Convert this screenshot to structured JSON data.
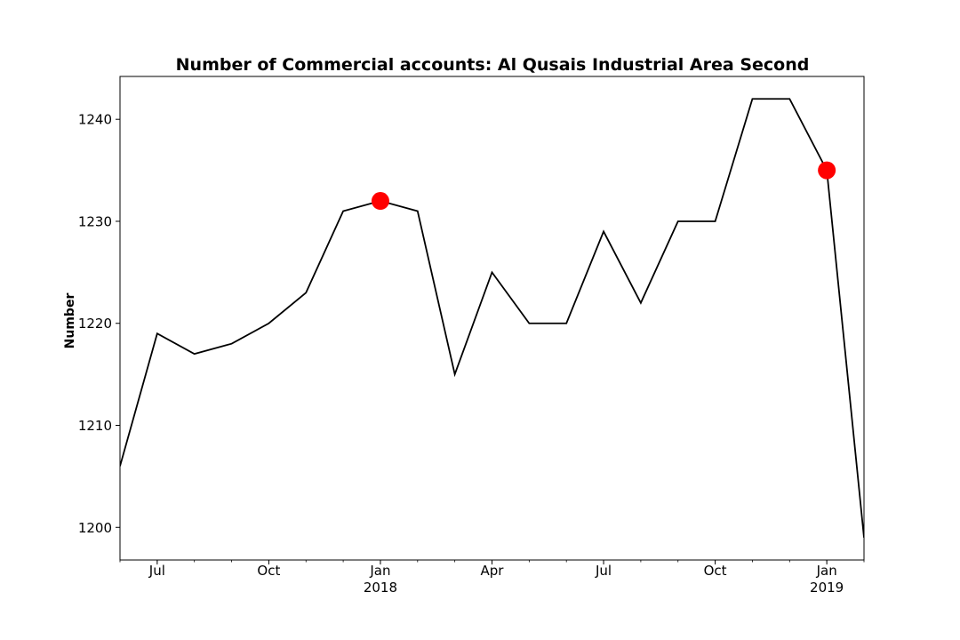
{
  "chart_data": {
    "type": "line",
    "title": "Number of Commercial accounts: Al Qusais Industrial Area Second",
    "xlabel": "",
    "ylabel": "Number",
    "x": [
      "2017-06",
      "2017-07",
      "2017-08",
      "2017-09",
      "2017-10",
      "2017-11",
      "2017-12",
      "2018-01",
      "2018-02",
      "2018-03",
      "2018-04",
      "2018-05",
      "2018-06",
      "2018-07",
      "2018-08",
      "2018-09",
      "2018-10",
      "2018-11",
      "2018-12",
      "2019-01",
      "2019-02"
    ],
    "series": [
      {
        "values": [
          1206,
          1219,
          1217,
          1218,
          1220,
          1223,
          1231,
          1232,
          1231,
          1215,
          1225,
          1220,
          1220,
          1229,
          1222,
          1230,
          1230,
          1242,
          1242,
          1235,
          1199
        ],
        "color": "#000000"
      }
    ],
    "highlights": [
      {
        "x": "2018-01",
        "y": 1232,
        "color": "#ff0000"
      },
      {
        "x": "2019-01",
        "y": 1235,
        "color": "#ff0000"
      }
    ],
    "xlim": [
      "2017-06",
      "2019-02"
    ],
    "ylim": [
      1196.8,
      1244.2
    ],
    "yticks": [
      1200,
      1210,
      1220,
      1230,
      1240
    ],
    "xticks_major": [
      {
        "x": "2017-07",
        "label": "Jul",
        "sublabel": ""
      },
      {
        "x": "2017-10",
        "label": "Oct",
        "sublabel": ""
      },
      {
        "x": "2018-01",
        "label": "Jan",
        "sublabel": "2018"
      },
      {
        "x": "2018-04",
        "label": "Apr",
        "sublabel": ""
      },
      {
        "x": "2018-07",
        "label": "Jul",
        "sublabel": ""
      },
      {
        "x": "2018-10",
        "label": "Oct",
        "sublabel": ""
      },
      {
        "x": "2019-01",
        "label": "Jan",
        "sublabel": "2019"
      }
    ],
    "grid": false,
    "legend": "none"
  }
}
